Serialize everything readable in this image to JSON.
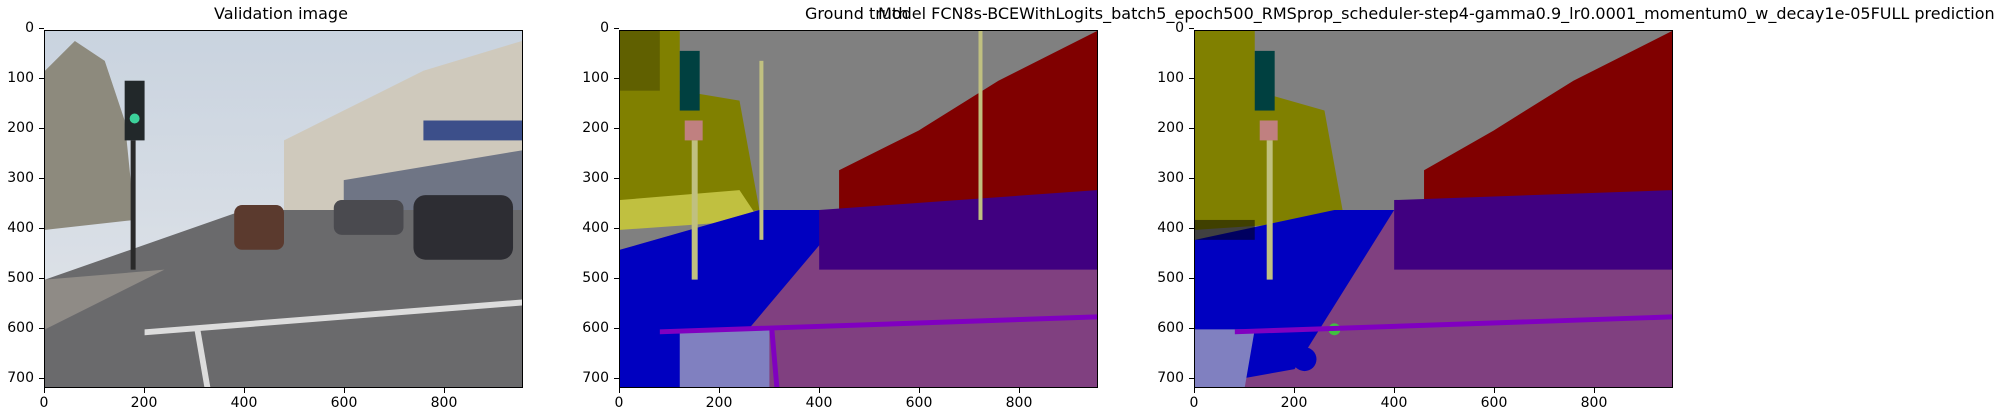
{
  "panels": [
    {
      "title": "Validation image",
      "kind": "photo"
    },
    {
      "title": "Ground truth",
      "kind": "label-map"
    },
    {
      "title": "Model FCN8s-BCEWithLogits_batch5_epoch500_RMSprop_scheduler-step4-gamma0.9_lr0.0001_momentum0_w_decay1e-05FULL prediction",
      "kind": "label-map"
    }
  ],
  "axes": {
    "y_ticks": [
      "0",
      "100",
      "200",
      "300",
      "400",
      "500",
      "600",
      "700"
    ],
    "x_ticks": [
      "0",
      "200",
      "400",
      "600",
      "800"
    ]
  },
  "colors": {
    "sky": "#808080",
    "building": "#800000",
    "tree": "#808000",
    "road": "#804080",
    "sidewalk": "#0000c0",
    "car": "#400080",
    "pole": "#c0c080",
    "signal": "#004040",
    "pedestrian": "#c08080",
    "lane_marking": "#8000c0",
    "void": "#000000"
  }
}
